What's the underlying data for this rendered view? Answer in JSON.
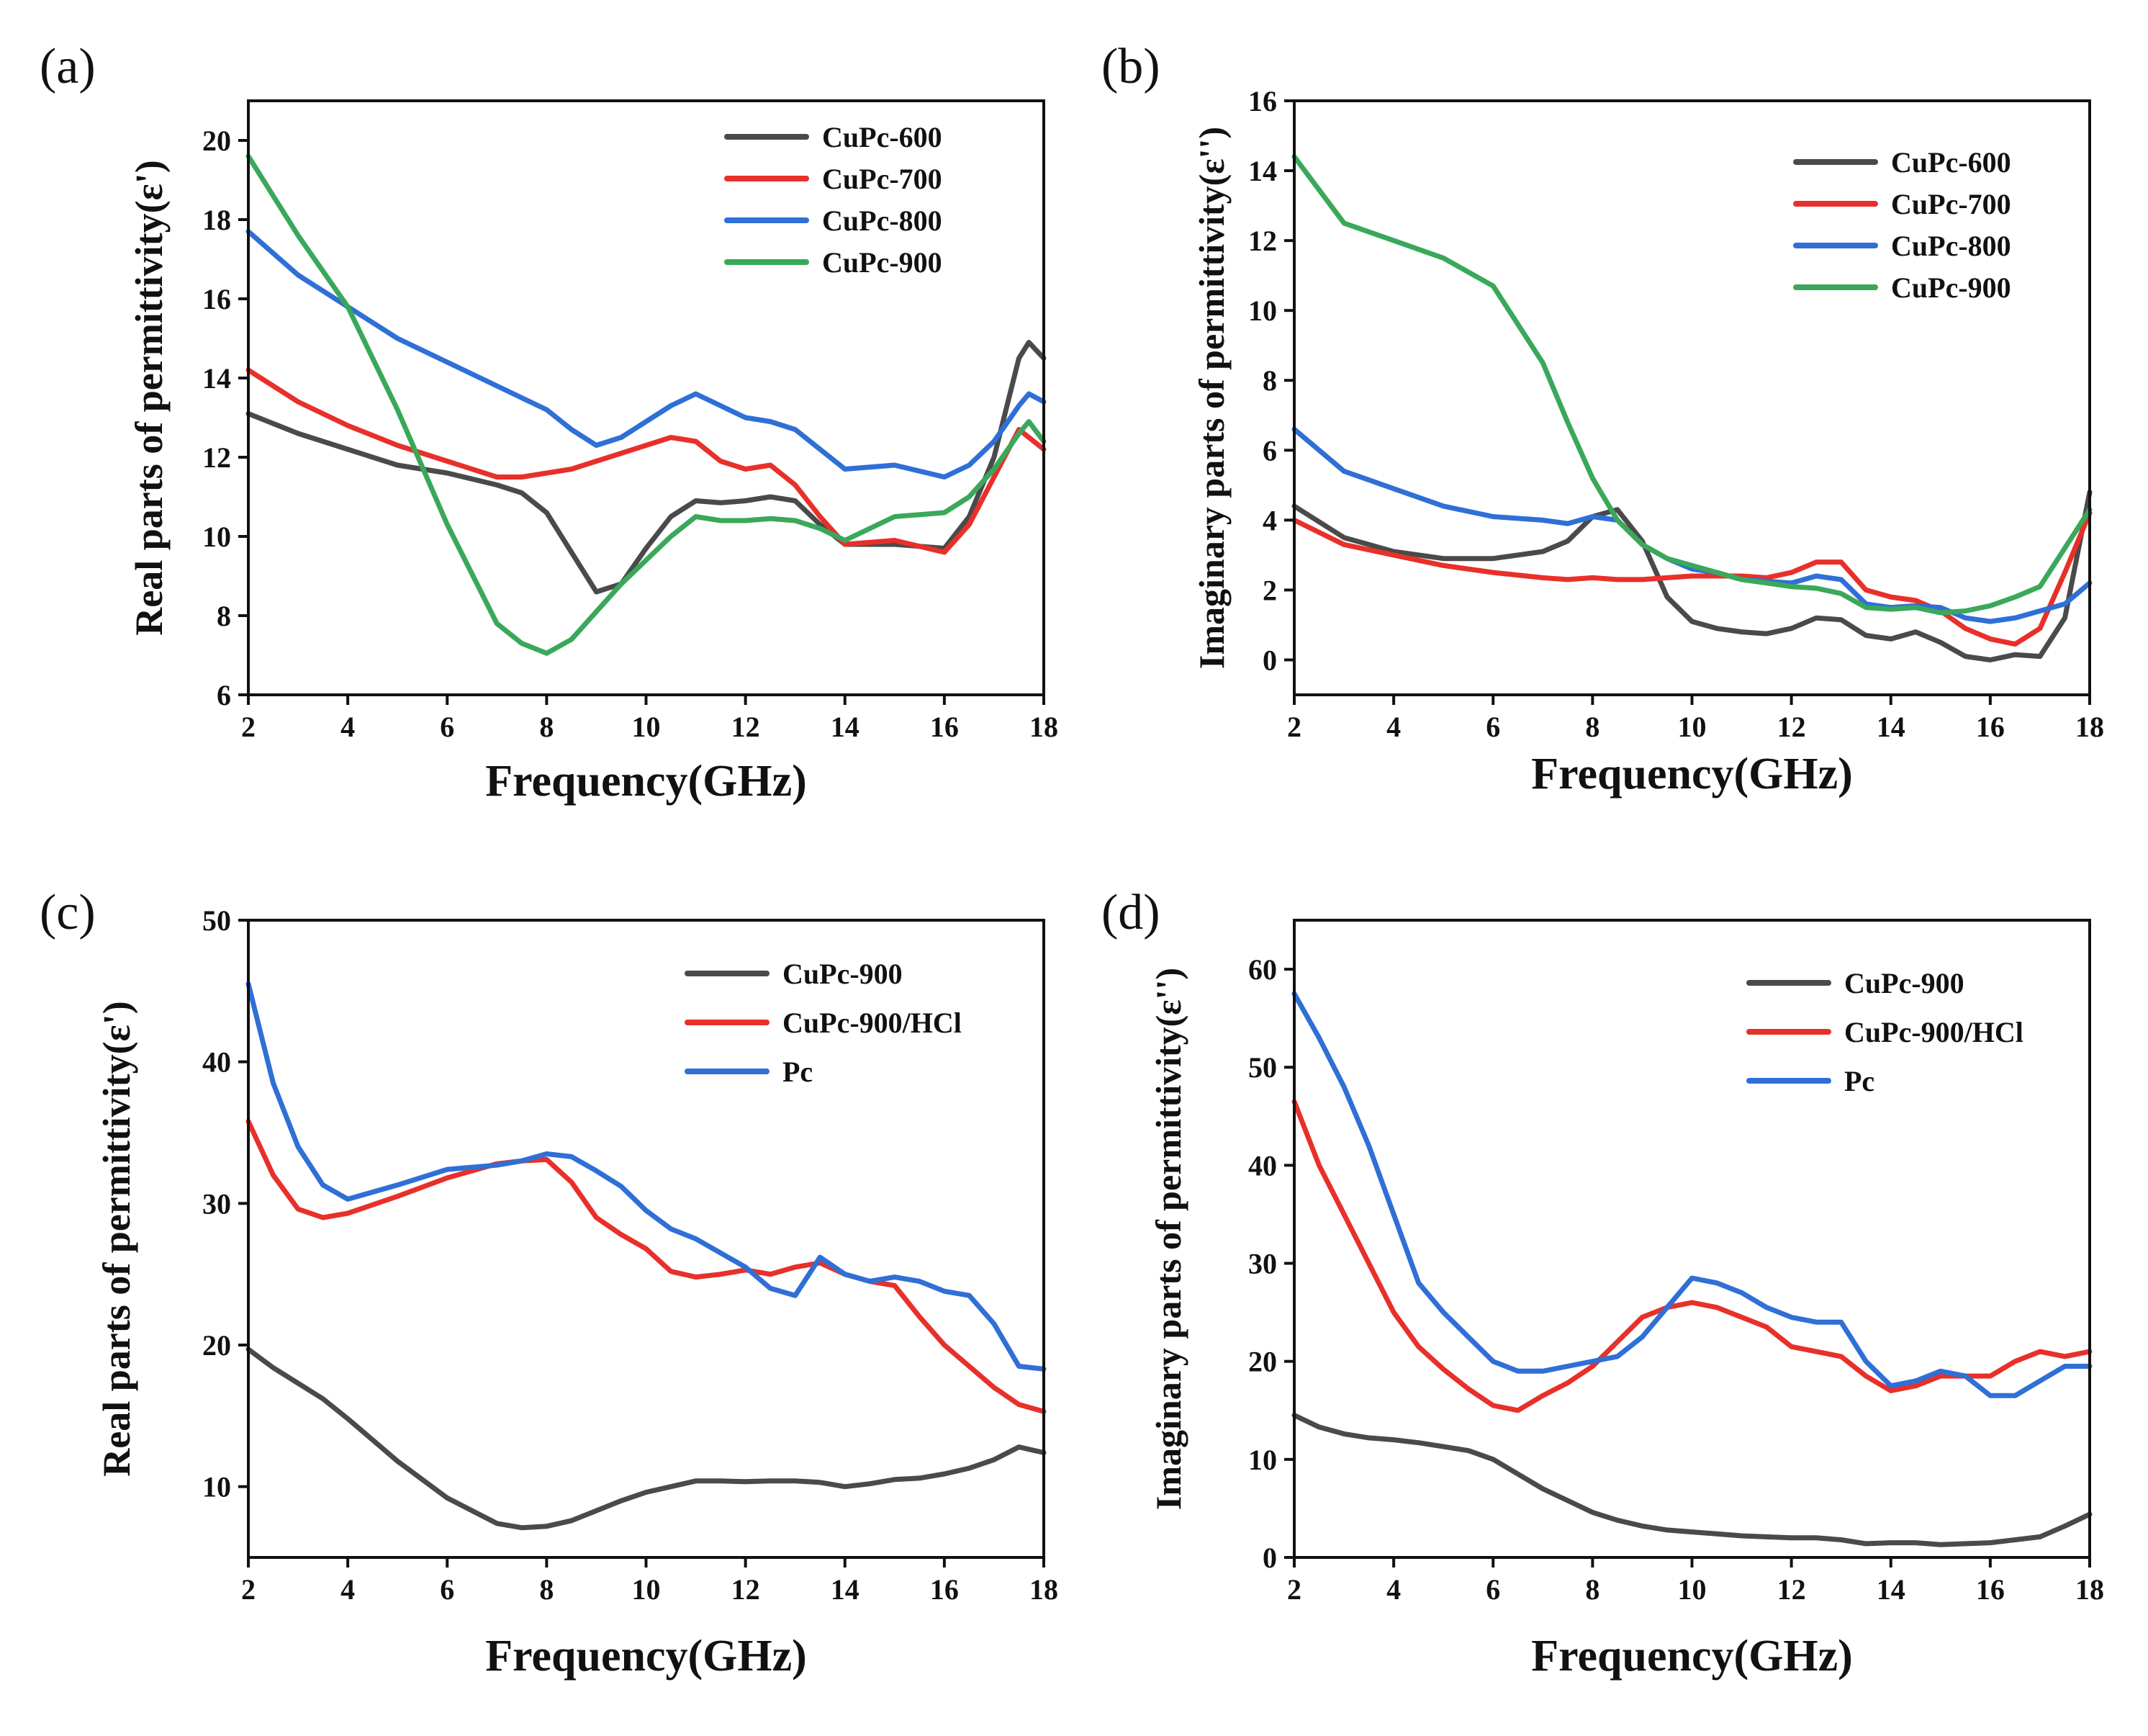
{
  "chart_data": [
    {
      "panel": "(a)",
      "type": "line",
      "xlabel": "Frequency(GHz)",
      "ylabel": "Real parts of permittivity(ε')",
      "xlim": [
        2,
        18
      ],
      "ylim": [
        6,
        21
      ],
      "xticks": [
        2,
        4,
        6,
        8,
        10,
        12,
        14,
        16,
        18
      ],
      "yticks": [
        6,
        8,
        10,
        12,
        14,
        16,
        18,
        20
      ],
      "legend_position": "top-right",
      "x": [
        2,
        3,
        4,
        5,
        6,
        7,
        7.5,
        8,
        8.5,
        9,
        9.5,
        10,
        10.5,
        11,
        11.5,
        12,
        12.5,
        13,
        13.5,
        14,
        15,
        16,
        16.5,
        17,
        17.5,
        17.7,
        18
      ],
      "series": [
        {
          "name": "CuPc-600",
          "color": "#4a4a4a",
          "values": [
            13.1,
            12.6,
            12.2,
            11.8,
            11.6,
            11.3,
            11.1,
            10.6,
            9.6,
            8.6,
            8.8,
            9.7,
            10.5,
            10.9,
            10.85,
            10.9,
            11.0,
            10.9,
            10.3,
            9.8,
            9.8,
            9.7,
            10.5,
            12.0,
            14.5,
            14.9,
            14.5
          ]
        },
        {
          "name": "CuPc-700",
          "color": "#e8302a",
          "values": [
            14.2,
            13.4,
            12.8,
            12.3,
            11.9,
            11.5,
            11.5,
            11.6,
            11.7,
            11.9,
            12.1,
            12.3,
            12.5,
            12.4,
            11.9,
            11.7,
            11.8,
            11.3,
            10.5,
            9.8,
            9.9,
            9.6,
            10.3,
            11.5,
            12.7,
            12.5,
            12.2
          ]
        },
        {
          "name": "CuPc-800",
          "color": "#2f6fd6",
          "values": [
            17.7,
            16.6,
            15.8,
            15.0,
            14.4,
            13.8,
            13.5,
            13.2,
            12.7,
            12.3,
            12.5,
            12.9,
            13.3,
            13.6,
            13.3,
            13.0,
            12.9,
            12.7,
            12.2,
            11.7,
            11.8,
            11.5,
            11.8,
            12.4,
            13.3,
            13.6,
            13.4
          ]
        },
        {
          "name": "CuPc-900",
          "color": "#3aa85a",
          "values": [
            19.6,
            17.6,
            15.8,
            13.2,
            10.3,
            7.8,
            7.3,
            7.05,
            7.4,
            8.1,
            8.8,
            9.4,
            10.0,
            10.5,
            10.4,
            10.4,
            10.45,
            10.4,
            10.2,
            9.9,
            10.5,
            10.6,
            11.0,
            11.7,
            12.6,
            12.9,
            12.4
          ]
        }
      ]
    },
    {
      "panel": "(b)",
      "type": "line",
      "xlabel": "Frequency(GHz)",
      "ylabel": "Imaginary parts of permittivity(ε'')",
      "xlim": [
        2,
        18
      ],
      "ylim": [
        -1,
        16
      ],
      "xticks": [
        2,
        4,
        6,
        8,
        10,
        12,
        14,
        16,
        18
      ],
      "yticks": [
        0,
        2,
        4,
        6,
        8,
        10,
        12,
        14,
        16
      ],
      "legend_position": "top-right",
      "x": [
        2,
        3,
        4,
        5,
        6,
        7,
        7.5,
        8,
        8.5,
        9,
        9.5,
        10,
        10.5,
        11,
        11.5,
        12,
        12.5,
        13,
        13.5,
        14,
        14.5,
        15,
        15.5,
        16,
        16.5,
        17,
        17.5,
        18
      ],
      "series": [
        {
          "name": "CuPc-600",
          "color": "#4a4a4a",
          "values": [
            4.4,
            3.5,
            3.1,
            2.9,
            2.9,
            3.1,
            3.4,
            4.1,
            4.3,
            3.4,
            1.8,
            1.1,
            0.9,
            0.8,
            0.75,
            0.9,
            1.2,
            1.15,
            0.7,
            0.6,
            0.8,
            0.5,
            0.1,
            0.0,
            0.15,
            0.1,
            1.2,
            4.8
          ]
        },
        {
          "name": "CuPc-700",
          "color": "#e8302a",
          "values": [
            4.0,
            3.3,
            3.0,
            2.7,
            2.5,
            2.35,
            2.3,
            2.35,
            2.3,
            2.3,
            2.35,
            2.4,
            2.4,
            2.4,
            2.35,
            2.5,
            2.8,
            2.8,
            2.0,
            1.8,
            1.7,
            1.4,
            0.9,
            0.6,
            0.45,
            0.9,
            2.5,
            4.2
          ]
        },
        {
          "name": "CuPc-800",
          "color": "#2f6fd6",
          "values": [
            6.6,
            5.4,
            4.9,
            4.4,
            4.1,
            4.0,
            3.9,
            4.1,
            4.0,
            3.3,
            2.9,
            2.6,
            2.5,
            2.3,
            2.25,
            2.2,
            2.4,
            2.3,
            1.6,
            1.5,
            1.55,
            1.5,
            1.2,
            1.1,
            1.2,
            1.4,
            1.6,
            2.2
          ]
        },
        {
          "name": "CuPc-900",
          "color": "#3aa85a",
          "values": [
            14.4,
            12.5,
            12.0,
            11.5,
            10.7,
            8.5,
            6.8,
            5.2,
            4.0,
            3.3,
            2.9,
            2.7,
            2.5,
            2.3,
            2.2,
            2.1,
            2.05,
            1.9,
            1.5,
            1.45,
            1.5,
            1.35,
            1.4,
            1.55,
            1.8,
            2.1,
            3.2,
            4.3
          ]
        }
      ]
    },
    {
      "panel": "(c)",
      "type": "line",
      "xlabel": "Frequency(GHz)",
      "ylabel": "Real parts of permittivity(ε')",
      "xlim": [
        2,
        18
      ],
      "ylim": [
        5,
        50
      ],
      "xticks": [
        2,
        4,
        6,
        8,
        10,
        12,
        14,
        16,
        18
      ],
      "yticks": [
        10,
        20,
        30,
        40,
        50
      ],
      "legend_position": "top-right",
      "x": [
        2,
        2.5,
        3,
        3.5,
        4,
        5,
        6,
        7,
        7.5,
        8,
        8.5,
        9,
        9.5,
        10,
        10.5,
        11,
        11.5,
        12,
        12.5,
        13,
        13.5,
        14,
        14.5,
        15,
        15.5,
        16,
        16.5,
        17,
        17.5,
        18
      ],
      "series": [
        {
          "name": "CuPc-900",
          "color": "#4a4a4a",
          "values": [
            19.7,
            18.4,
            17.3,
            16.2,
            14.8,
            11.8,
            9.2,
            7.4,
            7.1,
            7.2,
            7.6,
            8.3,
            9.0,
            9.6,
            10.0,
            10.4,
            10.4,
            10.35,
            10.4,
            10.4,
            10.3,
            10.0,
            10.2,
            10.5,
            10.6,
            10.9,
            11.3,
            11.9,
            12.8,
            12.4
          ]
        },
        {
          "name": "CuPc-900/HCl",
          "color": "#e8302a",
          "values": [
            35.8,
            32.0,
            29.6,
            29.0,
            29.3,
            30.5,
            31.8,
            32.8,
            33.0,
            33.1,
            31.5,
            29.0,
            27.8,
            26.8,
            25.2,
            24.8,
            25.0,
            25.3,
            25.0,
            25.5,
            25.8,
            25.0,
            24.5,
            24.2,
            22.0,
            20.0,
            18.5,
            17.0,
            15.8,
            15.3
          ]
        },
        {
          "name": "Pc",
          "color": "#2f6fd6",
          "values": [
            45.5,
            38.5,
            34.0,
            31.3,
            30.3,
            31.3,
            32.4,
            32.7,
            33.0,
            33.5,
            33.3,
            32.3,
            31.2,
            29.5,
            28.2,
            27.5,
            26.5,
            25.5,
            24.0,
            23.5,
            26.2,
            25.0,
            24.5,
            24.8,
            24.5,
            23.8,
            23.5,
            21.5,
            18.5,
            18.3
          ]
        }
      ]
    },
    {
      "panel": "(d)",
      "type": "line",
      "xlabel": "Frequency(GHz)",
      "ylabel": "Imaginary parts of permittivity(ε'')",
      "xlim": [
        2,
        18
      ],
      "ylim": [
        0,
        65
      ],
      "xticks": [
        2,
        4,
        6,
        8,
        10,
        12,
        14,
        16,
        18
      ],
      "yticks": [
        0,
        10,
        20,
        30,
        40,
        50,
        60
      ],
      "legend_position": "top-right",
      "x": [
        2,
        2.5,
        3,
        3.5,
        4,
        4.5,
        5,
        5.5,
        6,
        6.5,
        7,
        7.5,
        8,
        8.5,
        9,
        9.5,
        10,
        10.5,
        11,
        11.5,
        12,
        12.5,
        13,
        13.5,
        14,
        14.5,
        15,
        15.5,
        16,
        16.5,
        17,
        17.5,
        18
      ],
      "series": [
        {
          "name": "CuPc-900",
          "color": "#4a4a4a",
          "values": [
            14.5,
            13.3,
            12.6,
            12.2,
            12.0,
            11.7,
            11.3,
            10.9,
            10.0,
            8.5,
            7.0,
            5.8,
            4.6,
            3.8,
            3.2,
            2.8,
            2.6,
            2.4,
            2.2,
            2.1,
            2.0,
            2.0,
            1.8,
            1.4,
            1.5,
            1.5,
            1.3,
            1.4,
            1.5,
            1.8,
            2.1,
            3.2,
            4.4
          ]
        },
        {
          "name": "CuPc-900/HCl",
          "color": "#e8302a",
          "values": [
            46.5,
            40.0,
            35.0,
            30.0,
            25.0,
            21.5,
            19.2,
            17.2,
            15.5,
            15.0,
            16.5,
            17.8,
            19.5,
            22.0,
            24.5,
            25.5,
            26.0,
            25.5,
            24.5,
            23.5,
            21.5,
            21.0,
            20.5,
            18.5,
            17.0,
            17.5,
            18.5,
            18.5,
            18.5,
            20.0,
            21.0,
            20.5,
            21.0
          ]
        },
        {
          "name": "Pc",
          "color": "#2f6fd6",
          "values": [
            57.5,
            53.0,
            48.0,
            42.0,
            35.0,
            28.0,
            25.0,
            22.5,
            20.0,
            19.0,
            19.0,
            19.5,
            20.0,
            20.5,
            22.5,
            25.5,
            28.5,
            28.0,
            27.0,
            25.5,
            24.5,
            24.0,
            24.0,
            20.0,
            17.5,
            18.0,
            19.0,
            18.5,
            16.5,
            16.5,
            18.0,
            19.5,
            19.5
          ]
        }
      ]
    }
  ]
}
